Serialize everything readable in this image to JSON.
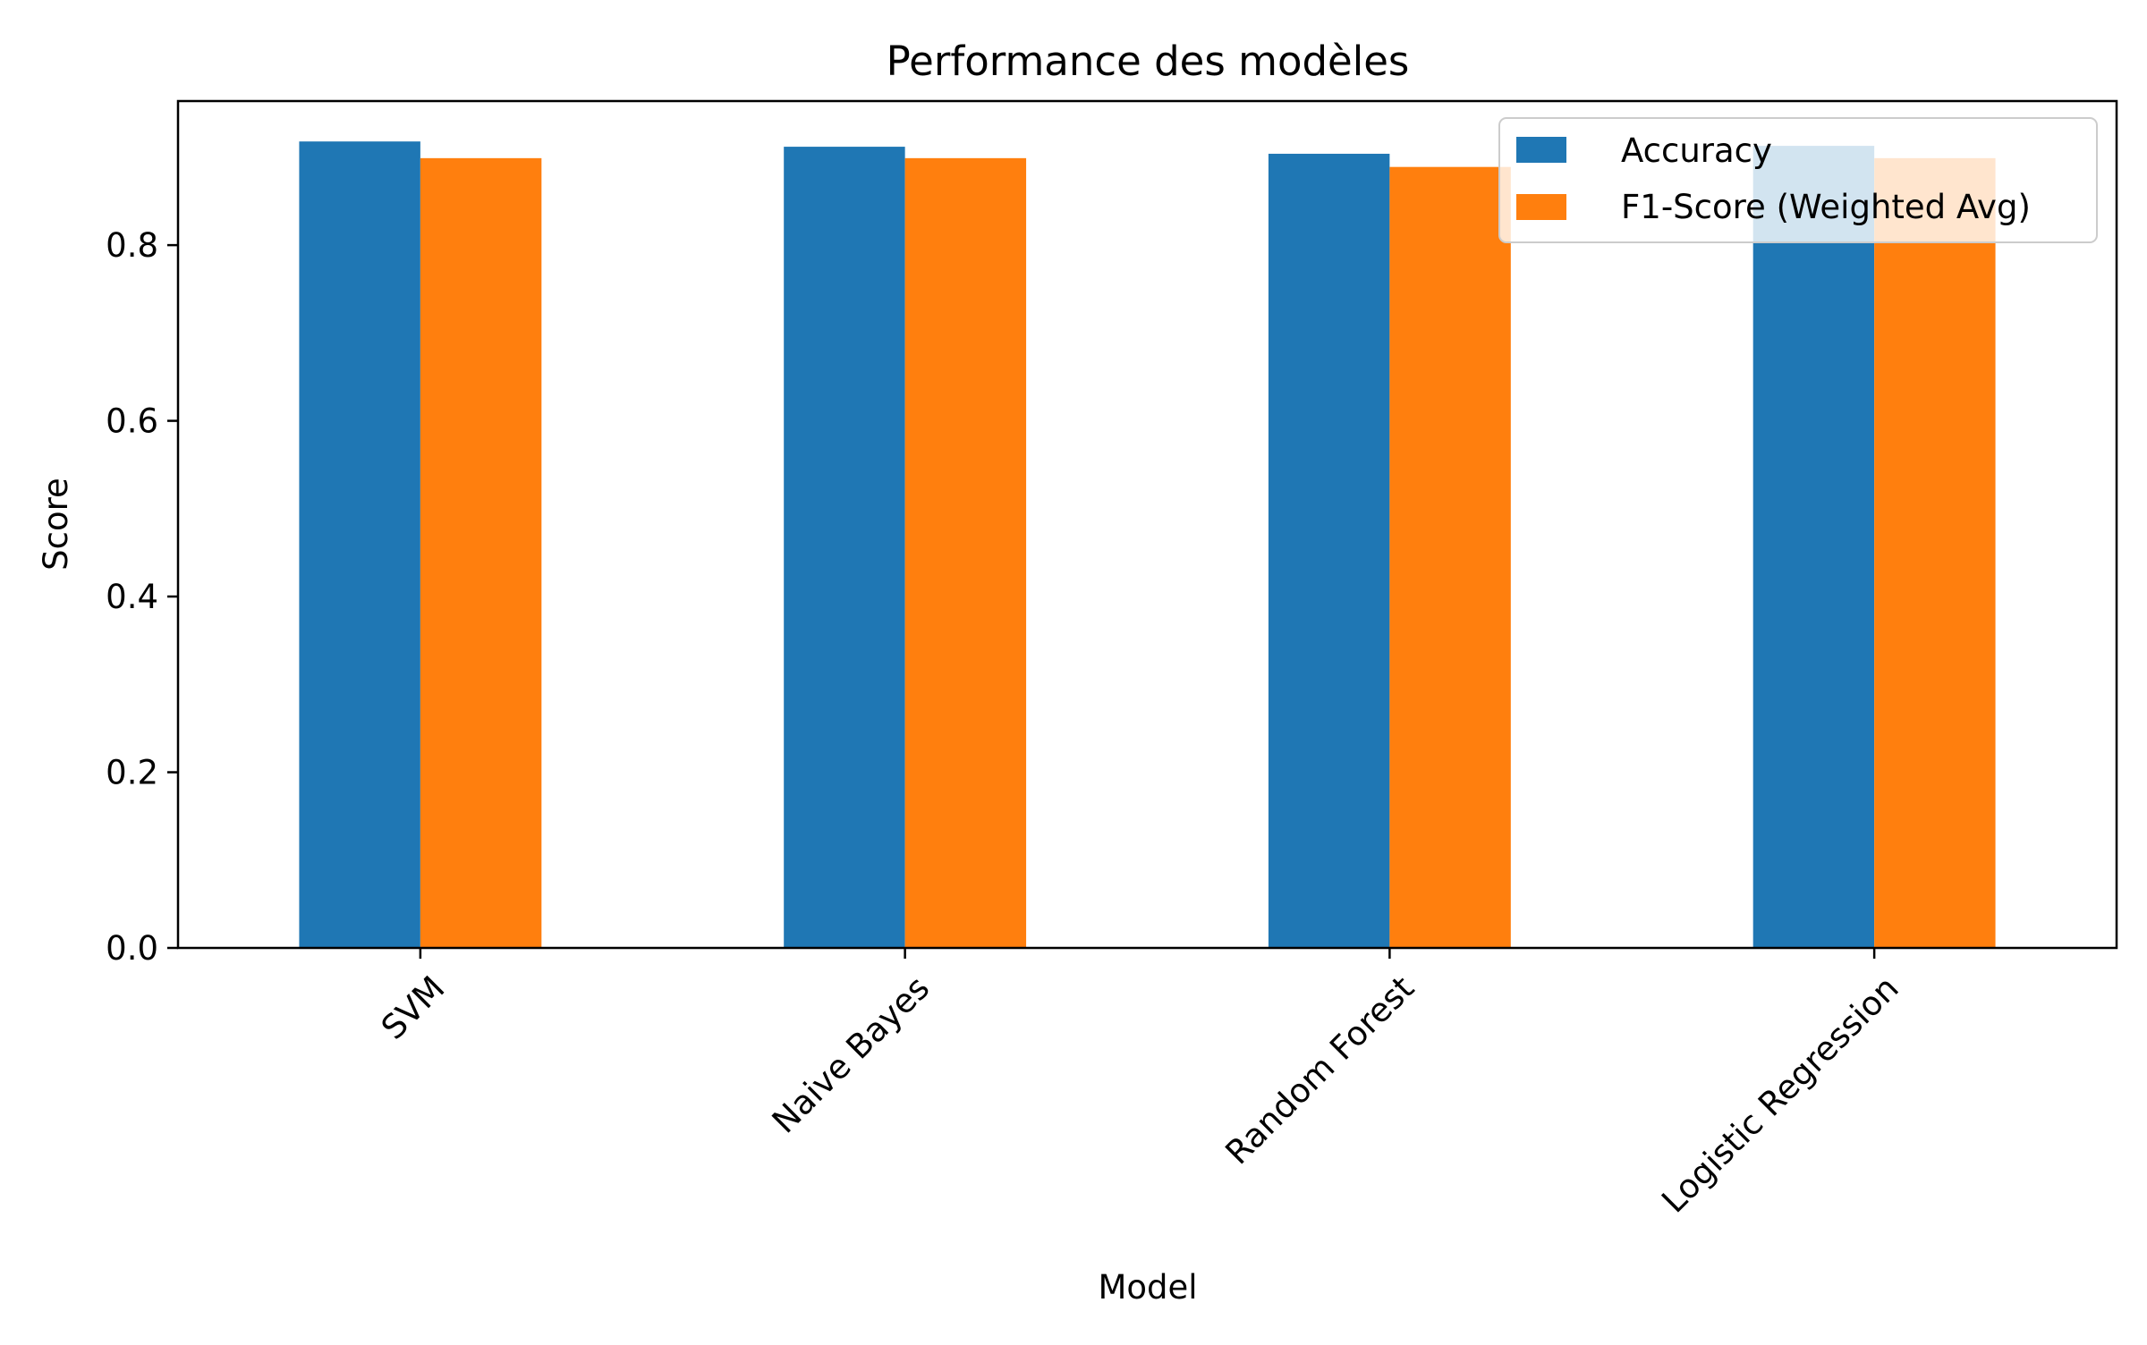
{
  "chart_data": {
    "type": "bar",
    "title": "Performance des modèles",
    "xlabel": "Model",
    "ylabel": "Score",
    "categories": [
      "SVM",
      "Naive Bayes",
      "Random Forest",
      "Logistic Regression"
    ],
    "series": [
      {
        "name": "Accuracy",
        "color": "#1f77b4",
        "values": [
          0.918,
          0.912,
          0.904,
          0.913
        ]
      },
      {
        "name": "F1-Score (Weighted Avg)",
        "color": "#ff7f0e",
        "values": [
          0.899,
          0.899,
          0.889,
          0.899
        ]
      }
    ],
    "ylim": [
      0,
      0.964
    ],
    "yticks": [
      0.0,
      0.2,
      0.4,
      0.6,
      0.8
    ],
    "ytick_labels": [
      "0.0",
      "0.2",
      "0.4",
      "0.6",
      "0.8"
    ],
    "xtick_rotation_deg": 45,
    "grid": false,
    "legend_position": "top-right"
  }
}
